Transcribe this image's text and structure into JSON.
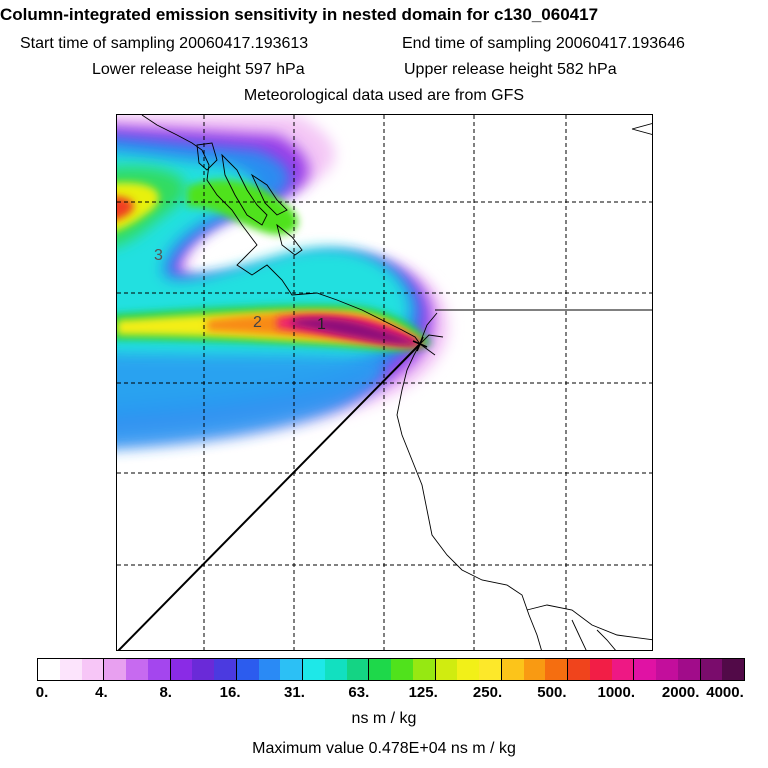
{
  "header": {
    "title": "Column-integrated emission sensitivity in nested domain for c130_060417",
    "start_time": "Start time of sampling 20060417.193613",
    "end_time": "End time of sampling 20060417.193646",
    "lower_height": "Lower release height  597 hPa",
    "upper_height": "Upper release height  582 hPa",
    "met_data": "Meteorological data used are from GFS"
  },
  "map": {
    "plume_labels": [
      "3",
      "2",
      "1"
    ]
  },
  "legend": {
    "tick_labels": [
      "0.",
      "4.",
      "8.",
      "16.",
      "31.",
      "63.",
      "125.",
      "250.",
      "500.",
      "1000.",
      "2000.",
      "4000."
    ],
    "colors": [
      "#ffffff",
      "#fce4fc",
      "#f7c6f7",
      "#e8a0f0",
      "#c76af0",
      "#a446ee",
      "#8a2be6",
      "#6a2ad8",
      "#4b3ae0",
      "#2c5cee",
      "#2a8af5",
      "#2cc0f5",
      "#1ee8e8",
      "#12e0c0",
      "#14d484",
      "#1ed84a",
      "#50e21c",
      "#96e812",
      "#d0ec10",
      "#f2f018",
      "#fde82a",
      "#fcc41a",
      "#f99a12",
      "#f56e10",
      "#f0441c",
      "#f21e46",
      "#ee1884",
      "#e012a4",
      "#c30e9c",
      "#a10c8a",
      "#7a0c6c",
      "#520a48"
    ],
    "unit": "ns m / kg",
    "max_value": "Maximum value  0.478E+04 ns m / kg"
  }
}
